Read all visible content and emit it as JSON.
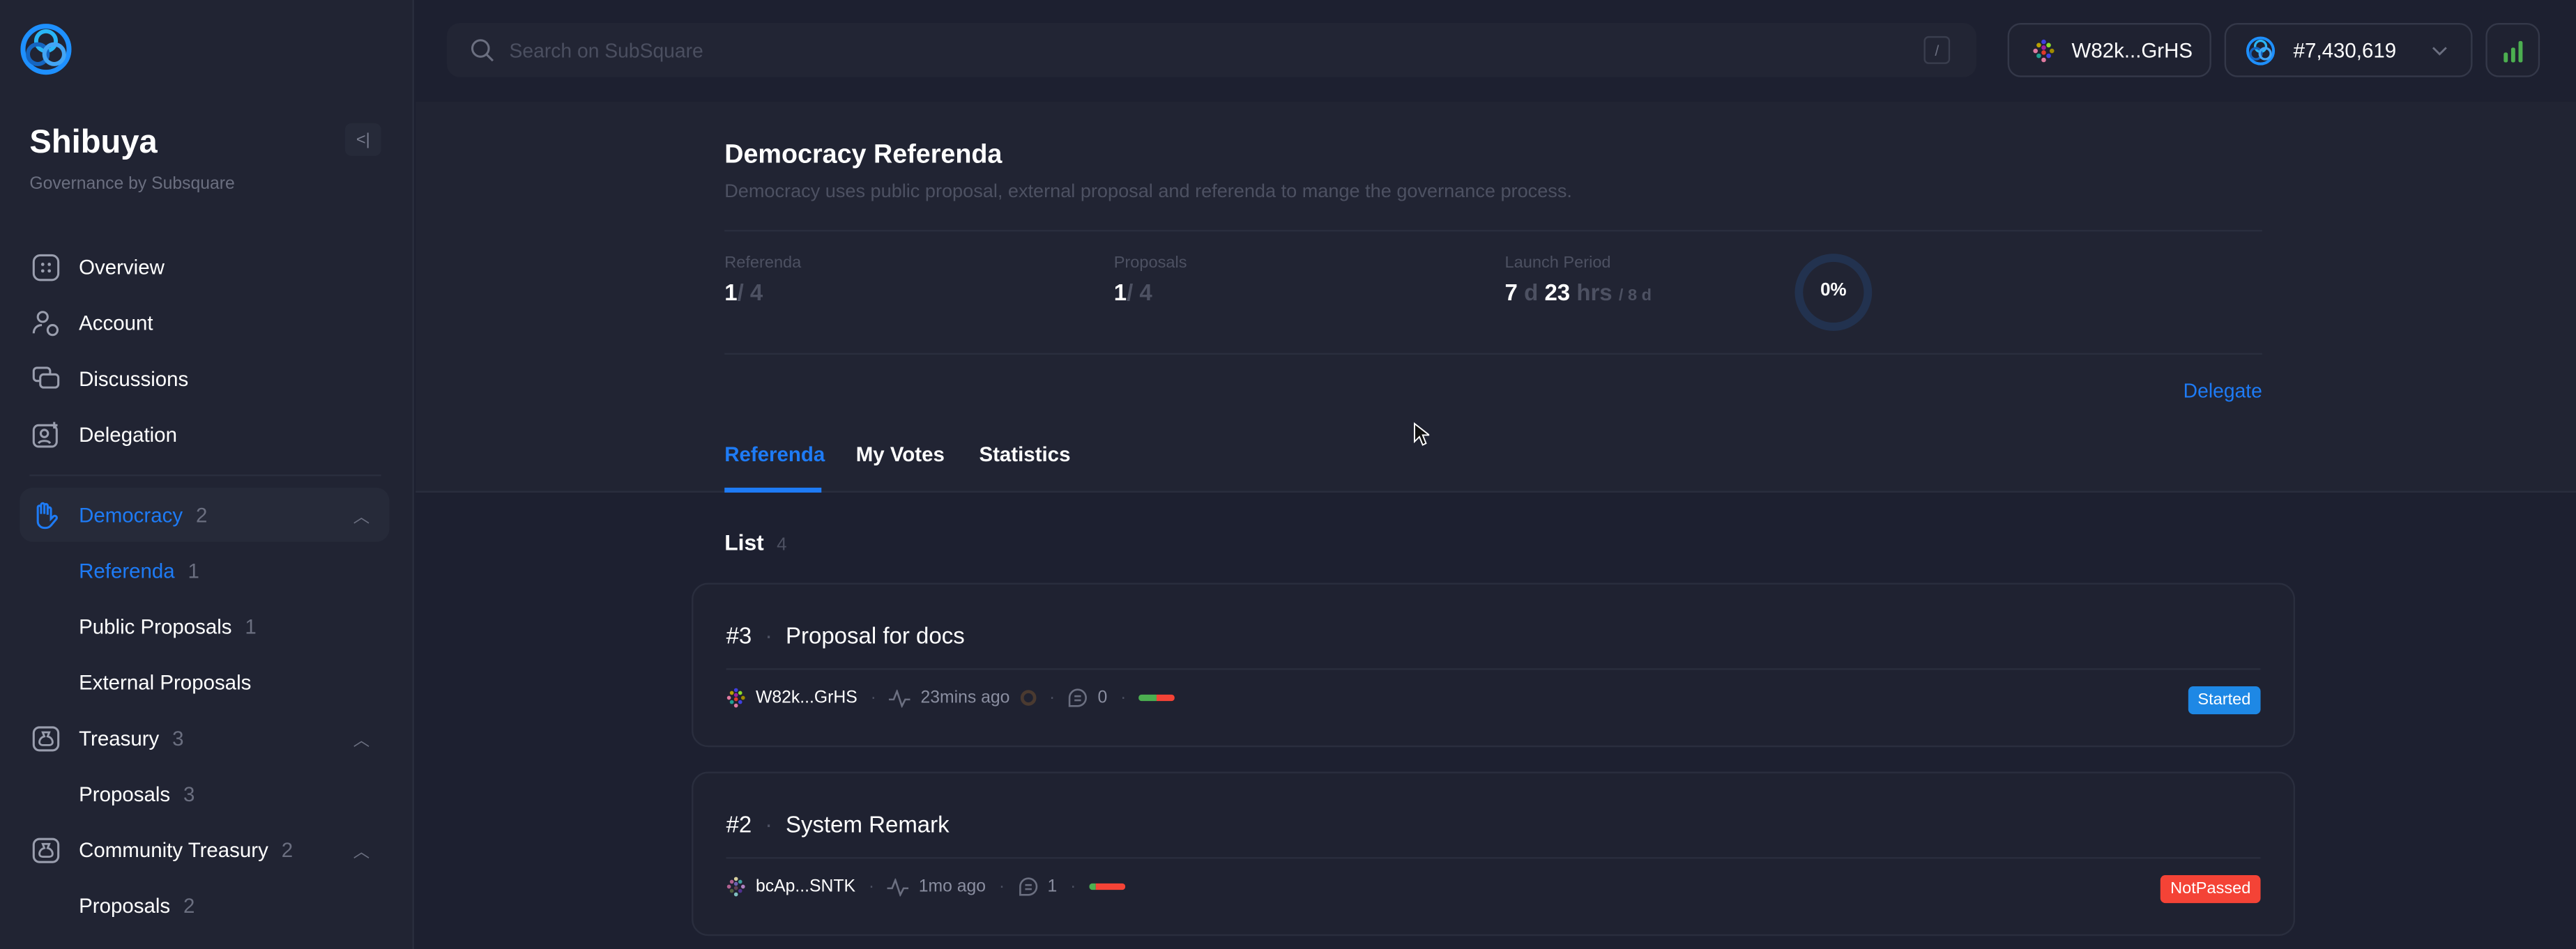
{
  "sidebar": {
    "title": "Shibuya",
    "subtitle": "Governance by Subsquare",
    "collapse_label": "<|",
    "items": [
      {
        "label": "Overview",
        "icon": "overview-icon"
      },
      {
        "label": "Account",
        "icon": "account-icon"
      },
      {
        "label": "Discussions",
        "icon": "discussions-icon"
      },
      {
        "label": "Delegation",
        "icon": "delegation-icon"
      }
    ],
    "groups": [
      {
        "label": "Democracy",
        "count": "2",
        "icon": "hand-icon",
        "active": true,
        "children": [
          {
            "label": "Referenda",
            "count": "1",
            "active": true
          },
          {
            "label": "Public Proposals",
            "count": "1"
          },
          {
            "label": "External Proposals",
            "count": ""
          }
        ]
      },
      {
        "label": "Treasury",
        "count": "3",
        "icon": "treasury-bag-icon",
        "children": [
          {
            "label": "Proposals",
            "count": "3"
          }
        ]
      },
      {
        "label": "Community Treasury",
        "count": "2",
        "icon": "treasury-bag-icon",
        "children": [
          {
            "label": "Proposals",
            "count": "2"
          }
        ]
      }
    ]
  },
  "header": {
    "search_placeholder": "Search on SubSquare",
    "search_shortcut": "/",
    "account": "W82k...GrHS",
    "block_height": "#7,430,619"
  },
  "page": {
    "title": "Democracy Referenda",
    "description": "Democracy uses public proposal, external proposal and referenda to mange the governance process.",
    "stats": {
      "referenda": {
        "label": "Referenda",
        "value": "1",
        "total": "/ 4"
      },
      "proposals": {
        "label": "Proposals",
        "value": "1",
        "total": "/ 4"
      },
      "launch_period": {
        "label": "Launch Period",
        "days": "7",
        "d_unit": "d",
        "hours": "23",
        "hrs_unit": "hrs",
        "total": "/ 8 d",
        "progress_label": "0%",
        "progress": 0
      }
    },
    "delegate_label": "Delegate",
    "tabs": [
      {
        "label": "Referenda",
        "active": true
      },
      {
        "label": "My Votes"
      },
      {
        "label": "Statistics"
      }
    ],
    "list_label": "List",
    "list_count": "4"
  },
  "referenda": [
    {
      "index": "#3",
      "title": "Proposal for docs",
      "proposer": "W82k...GrHS",
      "time": "23mins ago",
      "comments": "0",
      "aye": 0.5,
      "status": "Started",
      "status_color": "#1e88e5"
    },
    {
      "index": "#2",
      "title": "System Remark",
      "proposer": "bcAp...SNTK",
      "time": "1mo ago",
      "comments": "1",
      "aye": 0.2,
      "status": "NotPassed",
      "status_color": "#f44336"
    }
  ],
  "colors": {
    "accent": "#1e7bf5",
    "aye": "#4caf50",
    "nay": "#f44336",
    "signal": "#4caf50"
  }
}
